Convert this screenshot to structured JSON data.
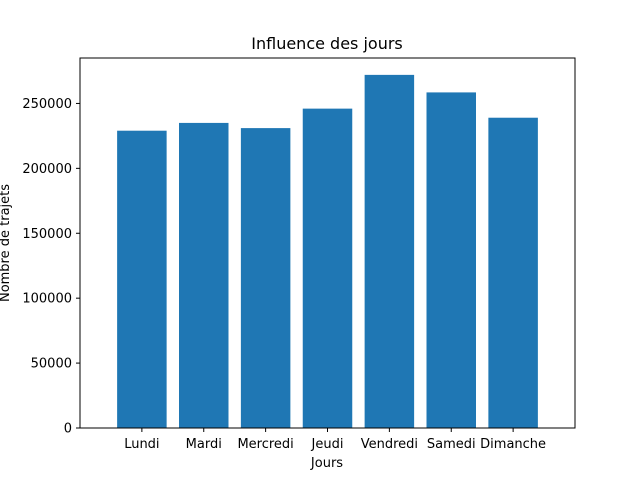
{
  "chart_data": {
    "type": "bar",
    "title": "Influence des jours",
    "xlabel": "Jours",
    "ylabel": "Nombre de trajets",
    "categories": [
      "Lundi",
      "Mardi",
      "Mercredi",
      "Jeudi",
      "Vendredi",
      "Samedi",
      "Dimanche"
    ],
    "values": [
      229000,
      235000,
      231000,
      246000,
      272000,
      258500,
      239000
    ],
    "ylim": [
      0,
      285000
    ],
    "yticks": [
      0,
      50000,
      100000,
      150000,
      200000,
      250000
    ],
    "ytick_labels": [
      "0",
      "50000",
      "100000",
      "150000",
      "200000",
      "250000"
    ],
    "bar_color": "#1f77b4",
    "grid": false,
    "legend": "none"
  }
}
